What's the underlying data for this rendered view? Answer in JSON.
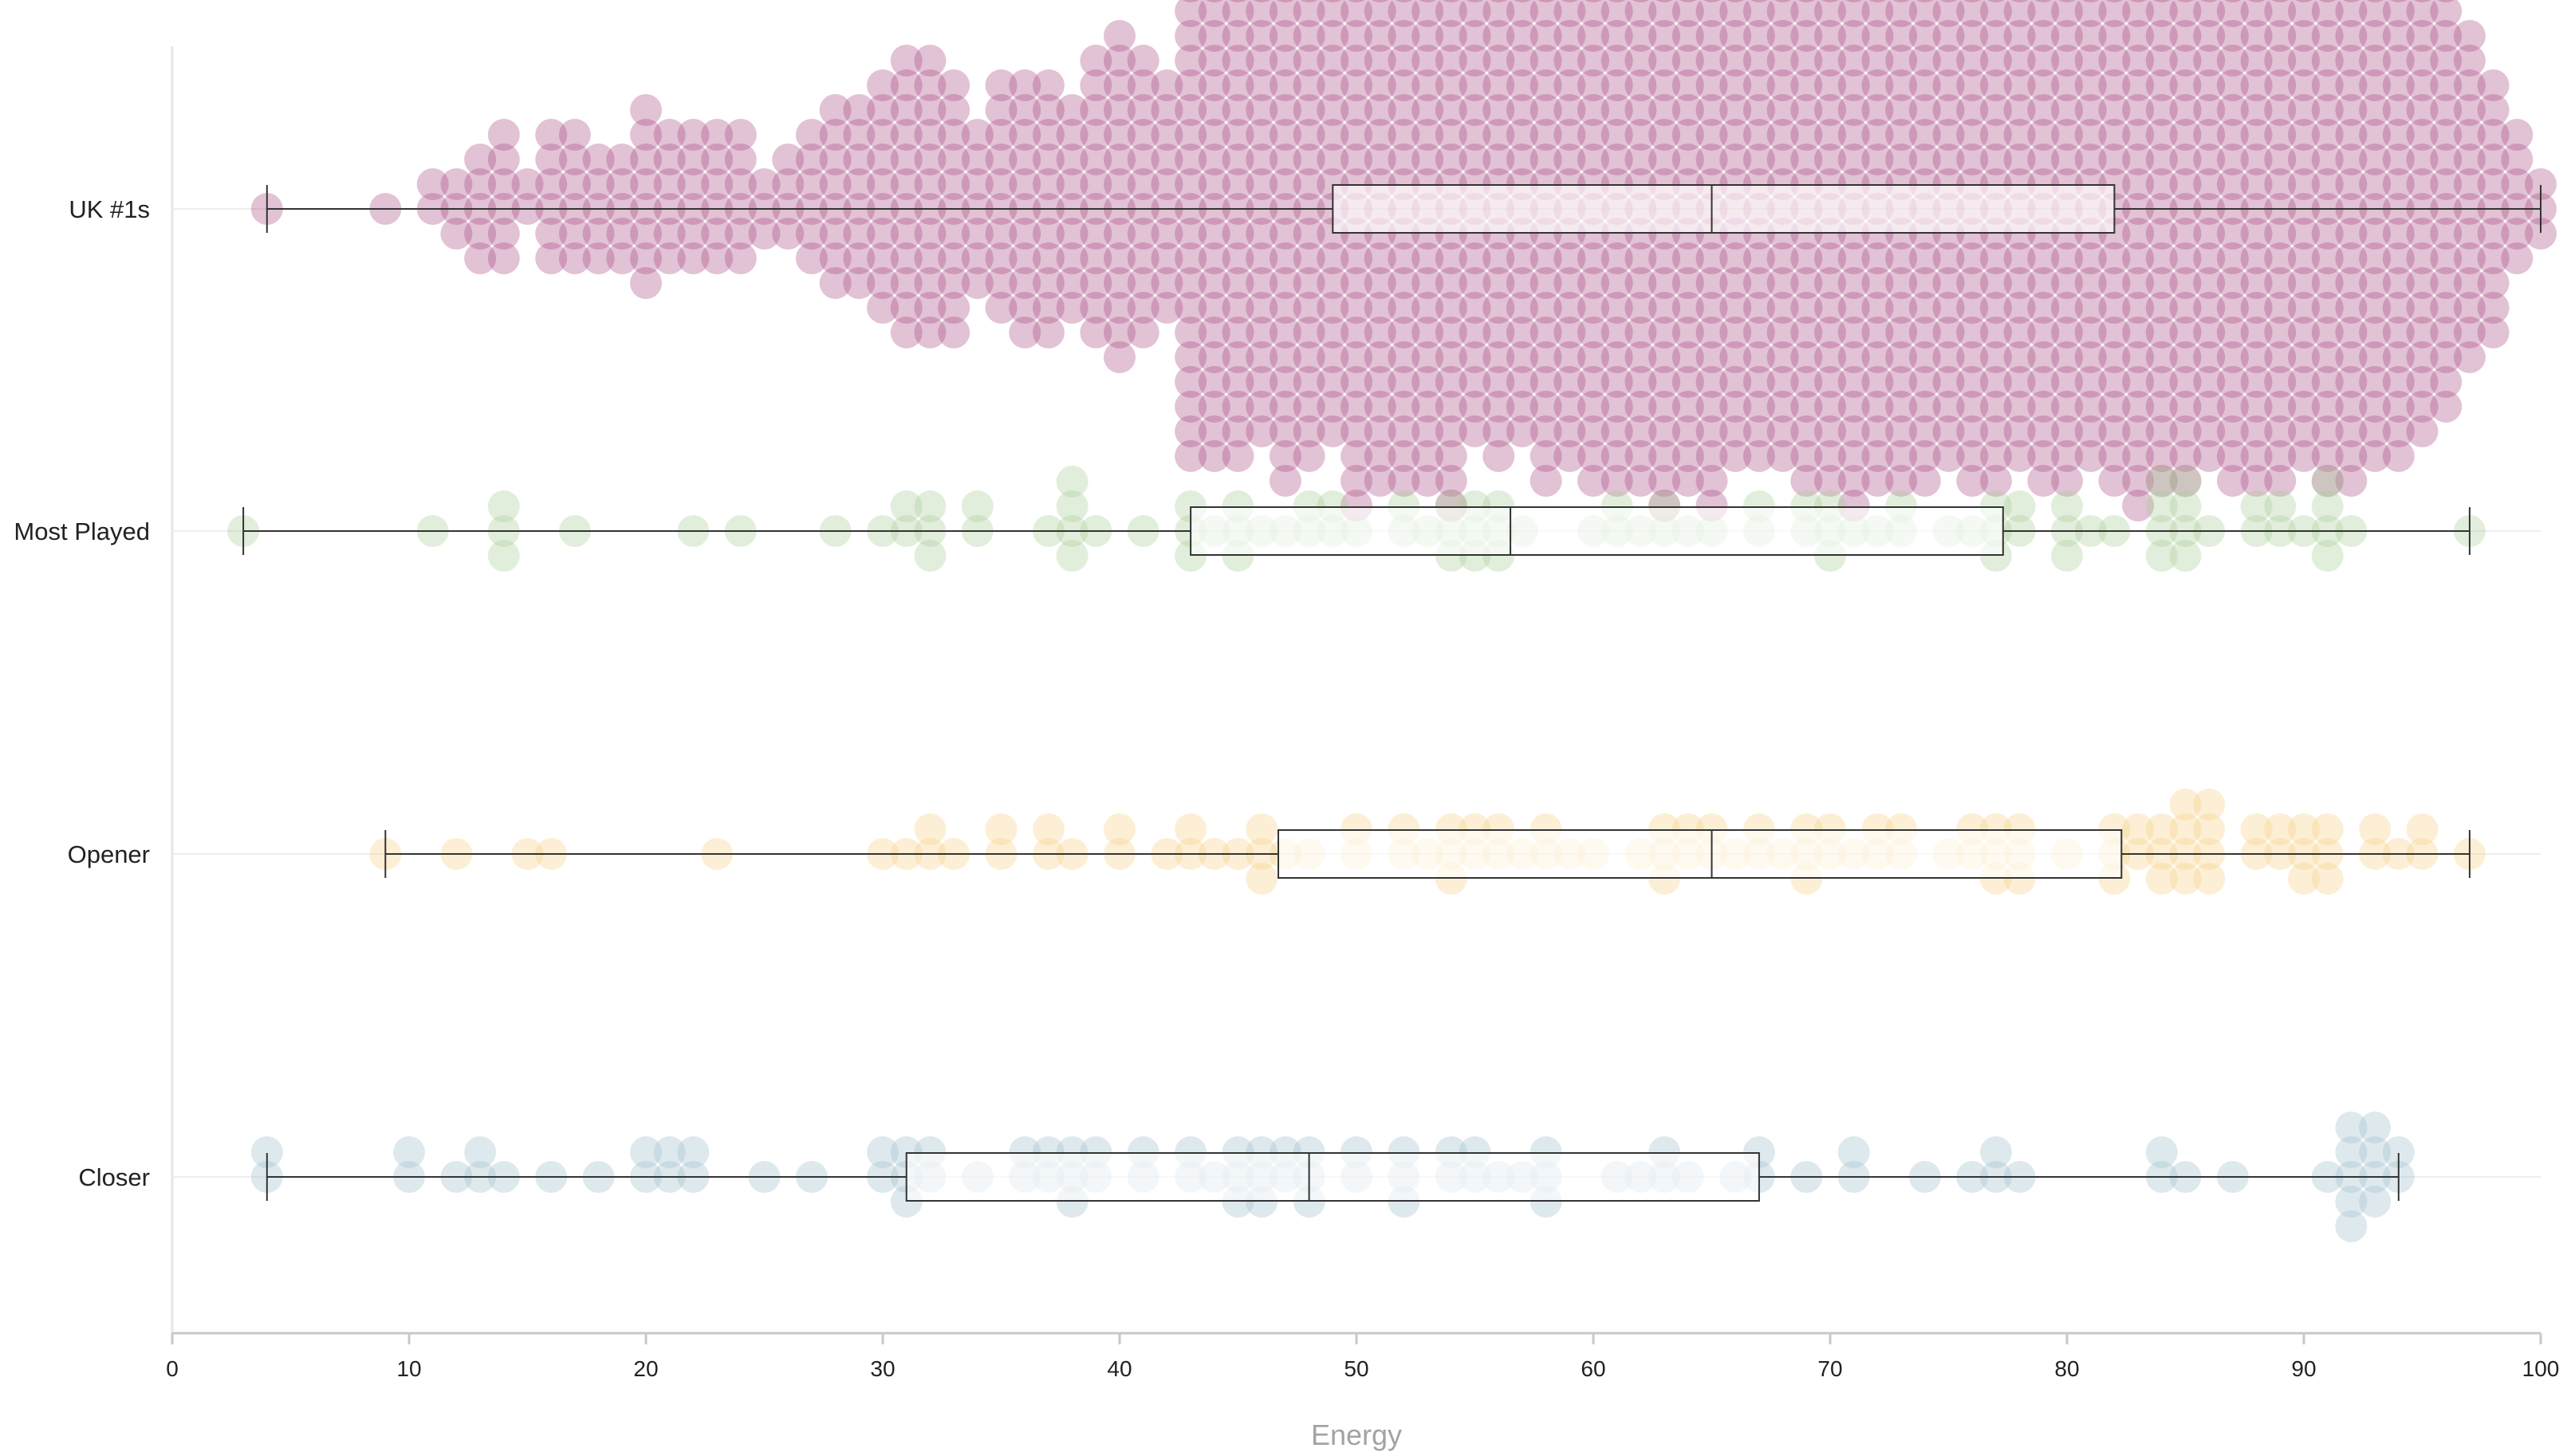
{
  "chart_data": {
    "type": "beeswarm-boxplot",
    "xlabel": "Energy",
    "xlim": [
      0,
      100
    ],
    "x_ticks": [
      "0",
      "10",
      "20",
      "30",
      "40",
      "50",
      "60",
      "70",
      "80",
      "90",
      "100"
    ],
    "grid": false,
    "legend": "none",
    "series": [
      {
        "name": "UK #1s",
        "color": "#a8457f",
        "box": {
          "min": 4,
          "q1": 49,
          "median": 65,
          "q3": 82,
          "max": 100
        },
        "values": [
          4,
          9,
          11,
          12,
          13,
          14,
          15,
          16,
          17,
          18,
          19,
          20,
          21,
          22,
          23,
          24,
          25,
          26,
          27,
          28,
          29,
          30,
          31,
          32,
          33,
          34,
          35,
          36,
          37,
          38,
          39,
          40,
          41,
          42,
          43,
          44,
          45,
          46,
          47,
          48,
          49,
          50,
          51,
          52,
          53,
          54,
          55,
          56,
          57,
          58,
          59,
          60,
          61,
          62,
          63,
          64,
          65,
          66,
          67,
          68,
          69,
          70,
          71,
          72,
          73,
          74,
          75,
          76,
          77,
          78,
          79,
          80,
          81,
          82,
          83,
          84,
          85,
          86,
          87,
          88,
          89,
          90,
          91,
          92,
          93,
          94,
          95,
          96,
          97,
          98,
          99,
          100
        ],
        "counts": [
          1,
          1,
          2,
          3,
          5,
          6,
          2,
          6,
          6,
          5,
          5,
          8,
          6,
          6,
          6,
          6,
          3,
          4,
          6,
          8,
          8,
          10,
          12,
          12,
          11,
          7,
          10,
          11,
          11,
          9,
          12,
          14,
          12,
          10,
          22,
          21,
          22,
          19,
          23,
          22,
          20,
          26,
          24,
          24,
          24,
          26,
          20,
          22,
          20,
          23,
          21,
          24,
          24,
          24,
          25,
          24,
          26,
          22,
          21,
          22,
          24,
          24,
          25,
          23,
          24,
          24,
          22,
          24,
          24,
          22,
          23,
          24,
          22,
          24,
          25,
          24,
          23,
          22,
          24,
          24,
          23,
          22,
          24,
          24,
          21,
          22,
          20,
          18,
          14,
          11,
          6,
          3
        ]
      },
      {
        "name": "Most Played",
        "color": "#a7cb95",
        "box": {
          "min": 3,
          "q1": 43,
          "median": 56.5,
          "q3": 77.3,
          "max": 97
        },
        "values": [
          3,
          11,
          14,
          17,
          22,
          24,
          28,
          30,
          31,
          32,
          34,
          37,
          38,
          39,
          41,
          43,
          44,
          45,
          46,
          47,
          48,
          49,
          50,
          52,
          53,
          54,
          55,
          56,
          57,
          60,
          61,
          62,
          63,
          64,
          65,
          67,
          69,
          70,
          71,
          72,
          73,
          75,
          76,
          77,
          78,
          80,
          81,
          82,
          84,
          85,
          86,
          88,
          89,
          90,
          91,
          92,
          97
        ],
        "counts": [
          1,
          1,
          3,
          1,
          1,
          1,
          1,
          1,
          2,
          3,
          2,
          1,
          4,
          1,
          1,
          3,
          1,
          3,
          1,
          1,
          2,
          2,
          1,
          2,
          1,
          3,
          3,
          3,
          1,
          1,
          2,
          1,
          2,
          1,
          1,
          2,
          2,
          3,
          1,
          1,
          2,
          1,
          1,
          3,
          2,
          3,
          1,
          1,
          4,
          4,
          1,
          2,
          2,
          1,
          4,
          1,
          1
        ]
      },
      {
        "name": "Opener",
        "color": "#f5cf7f",
        "box": {
          "min": 9,
          "q1": 46.7,
          "median": 65,
          "q3": 82.3,
          "max": 97
        },
        "values": [
          9,
          12,
          15,
          16,
          23,
          30,
          31,
          32,
          33,
          35,
          37,
          38,
          40,
          42,
          43,
          44,
          45,
          46,
          47,
          48,
          50,
          52,
          53,
          54,
          55,
          56,
          57,
          58,
          59,
          60,
          62,
          63,
          64,
          65,
          66,
          67,
          68,
          69,
          70,
          71,
          72,
          73,
          75,
          76,
          77,
          78,
          80,
          82,
          83,
          84,
          85,
          86,
          88,
          89,
          90,
          91,
          93,
          94,
          95,
          97
        ],
        "counts": [
          1,
          1,
          1,
          1,
          1,
          1,
          1,
          2,
          1,
          2,
          2,
          1,
          2,
          1,
          2,
          1,
          1,
          3,
          1,
          1,
          2,
          2,
          1,
          3,
          2,
          2,
          1,
          2,
          1,
          1,
          1,
          3,
          2,
          2,
          1,
          2,
          1,
          3,
          2,
          1,
          2,
          2,
          1,
          2,
          3,
          3,
          1,
          3,
          2,
          3,
          4,
          4,
          2,
          2,
          3,
          3,
          2,
          1,
          2,
          1
        ]
      },
      {
        "name": "Closer",
        "color": "#9bbccc",
        "box": {
          "min": 4,
          "q1": 31,
          "median": 48,
          "q3": 67,
          "max": 94
        },
        "values": [
          4,
          10,
          12,
          13,
          14,
          16,
          18,
          20,
          21,
          22,
          25,
          27,
          30,
          31,
          32,
          34,
          36,
          37,
          38,
          39,
          41,
          43,
          44,
          45,
          46,
          47,
          48,
          50,
          52,
          54,
          55,
          56,
          57,
          58,
          61,
          62,
          63,
          64,
          66,
          67,
          69,
          71,
          74,
          76,
          77,
          78,
          84,
          85,
          87,
          91,
          92,
          93,
          94
        ],
        "counts": [
          2,
          2,
          1,
          2,
          1,
          1,
          1,
          2,
          2,
          2,
          1,
          1,
          2,
          3,
          2,
          1,
          2,
          2,
          3,
          2,
          2,
          2,
          1,
          3,
          3,
          2,
          3,
          2,
          3,
          2,
          2,
          1,
          1,
          3,
          1,
          1,
          2,
          1,
          1,
          2,
          1,
          2,
          1,
          1,
          2,
          1,
          2,
          1,
          1,
          1,
          5,
          4,
          2
        ]
      }
    ]
  }
}
